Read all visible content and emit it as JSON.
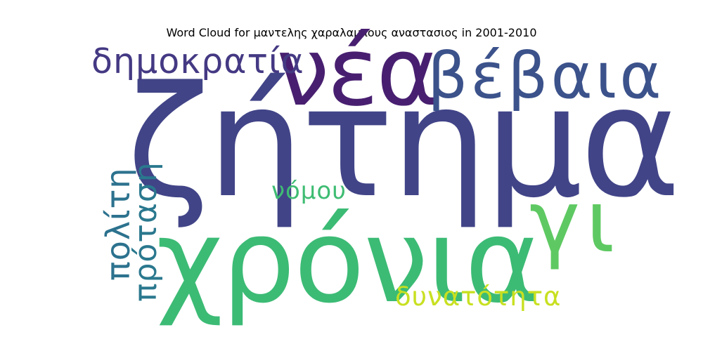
{
  "title": "Word Cloud for μαντελης χαραλαμπους αναστασιος in 2001-2010",
  "words": [
    {
      "text": "ζήτημα",
      "color": "#414487",
      "orientation": "horizontal"
    },
    {
      "text": "χρόνια",
      "color": "#3cbb75",
      "orientation": "horizontal"
    },
    {
      "text": "νέα",
      "color": "#481f70",
      "orientation": "horizontal"
    },
    {
      "text": "βέβαια",
      "color": "#3b528b",
      "orientation": "horizontal"
    },
    {
      "text": "δημοκρατία",
      "color": "#443983",
      "orientation": "horizontal"
    },
    {
      "text": "γι",
      "color": "#5ec962",
      "orientation": "horizontal"
    },
    {
      "text": "πολίτη",
      "color": "#2c728e",
      "orientation": "vertical"
    },
    {
      "text": "πρόταση",
      "color": "#2a788e",
      "orientation": "vertical"
    },
    {
      "text": "νόμου",
      "color": "#3fbc73",
      "orientation": "horizontal"
    },
    {
      "text": "δυνατότητα",
      "color": "#c8e020",
      "orientation": "horizontal"
    }
  ]
}
